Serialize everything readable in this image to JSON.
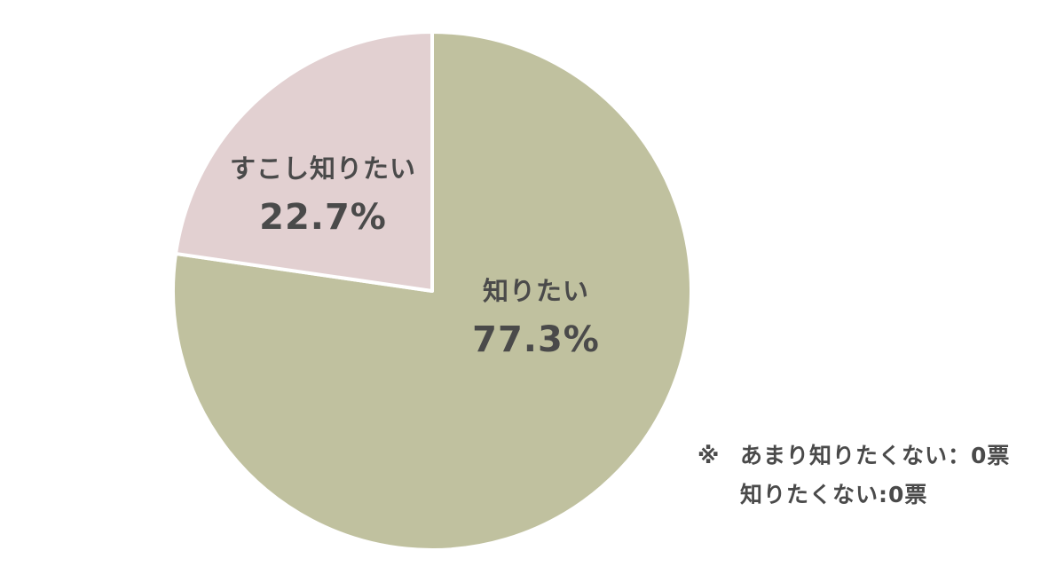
{
  "chart_data": {
    "type": "pie",
    "slices": [
      {
        "label": "知りたい",
        "value": 77.3,
        "value_text": "77.3%",
        "color": "#c0c19f"
      },
      {
        "label": "すこし知りたい",
        "value": 22.7,
        "value_text": "22.7%",
        "color": "#e2d0d1"
      }
    ],
    "start_angle_deg": 0,
    "direction": "clockwise"
  },
  "note": {
    "mark": "※",
    "lines": [
      "あまり知りたくない：0票",
      "知りたくない:0票"
    ]
  }
}
